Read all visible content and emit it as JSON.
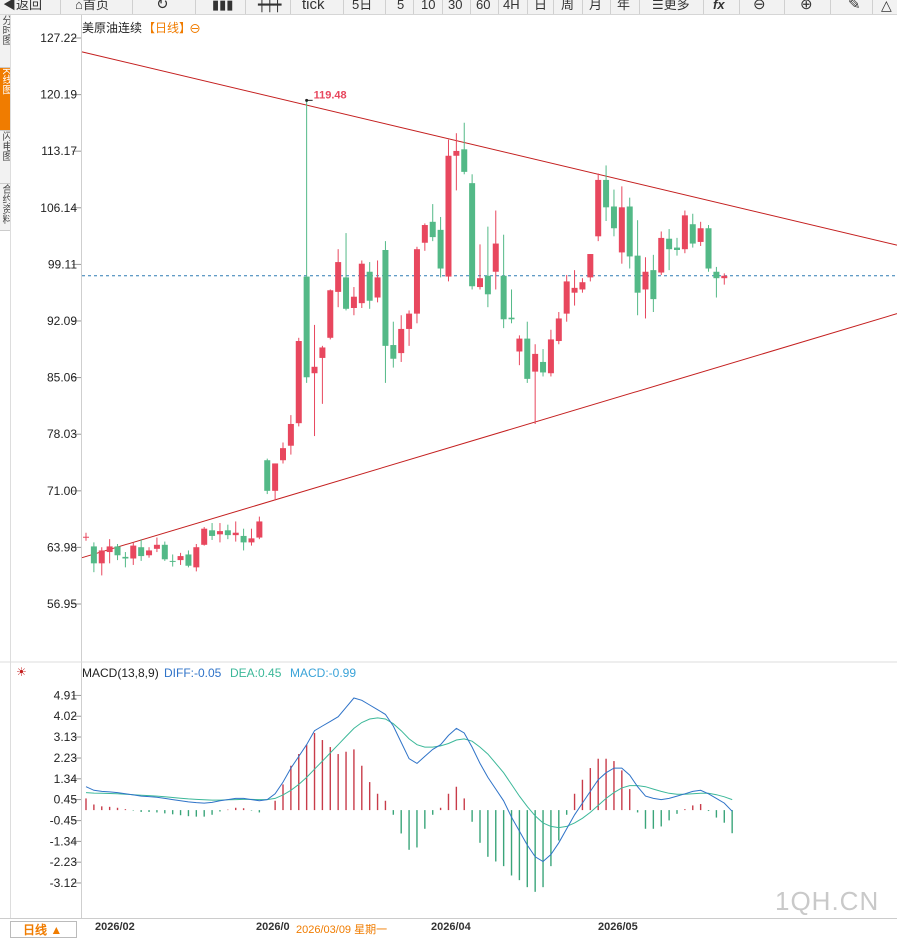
{
  "toolbar": {
    "back_label": "返回",
    "home_label": "首页",
    "tick_label": "tick",
    "five_day_label": "5日",
    "p5": "5",
    "p10": "10",
    "p30": "30",
    "p60": "60",
    "p4h": "4H",
    "day": "日",
    "week": "周",
    "month": "月",
    "year": "年",
    "more_label": "更多",
    "fx_label": "fx"
  },
  "side_tabs": [
    "分时图",
    "K线图",
    "闪电图",
    "合约资料"
  ],
  "chart_title": {
    "name": "美原油连续",
    "period": "【日线】"
  },
  "macd_header": {
    "name": "MACD(13,8,9)",
    "diff": "DIFF:-0.05",
    "dea": "DEA:0.45",
    "macd": "MACD:-0.99"
  },
  "colors": {
    "up": "#e8475e",
    "down": "#53b987",
    "trendline": "#c41f1f",
    "diff": "#2f73c8",
    "dea": "#3cb899",
    "dash": "#2e7bb4",
    "accent": "#f07c00"
  },
  "bottom": {
    "period_button": "日线 ▲",
    "cursor_date": "2026/03/09 星期一",
    "watermark": "1QH.CN"
  },
  "chart_data": [
    {
      "type": "candlestick",
      "title": "美原油连续【日线】",
      "y_ticks": [
        "127.22",
        "120.19",
        "113.17",
        "106.14",
        "99.11",
        "92.09",
        "85.06",
        "78.03",
        "71.00",
        "63.98",
        "56.95"
      ],
      "ylim": [
        56.95,
        127.22
      ],
      "x_tick_labels": [
        "2026/02",
        "2026/0",
        "2026/04",
        "2026/05"
      ],
      "max_annotation": {
        "label": "119.48",
        "value": 119.48
      },
      "last_price_line": 97.7,
      "trendlines": [
        {
          "name": "upper",
          "start": 125.5,
          "end": 101.5
        },
        {
          "name": "lower",
          "start": 62.7,
          "end": 93.0
        }
      ],
      "candles": [
        {
          "o": 65.2,
          "h": 65.8,
          "l": 64.8,
          "c": 65.3
        },
        {
          "o": 64.1,
          "h": 64.6,
          "l": 60.9,
          "c": 62.0
        },
        {
          "o": 62.0,
          "h": 64.0,
          "l": 60.5,
          "c": 63.6
        },
        {
          "o": 63.4,
          "h": 65.0,
          "l": 62.0,
          "c": 64.1
        },
        {
          "o": 64.1,
          "h": 64.4,
          "l": 62.4,
          "c": 63.0
        },
        {
          "o": 62.8,
          "h": 63.4,
          "l": 61.5,
          "c": 62.6
        },
        {
          "o": 62.6,
          "h": 64.6,
          "l": 61.8,
          "c": 64.2
        },
        {
          "o": 64.0,
          "h": 65.0,
          "l": 62.3,
          "c": 62.9
        },
        {
          "o": 63.0,
          "h": 64.0,
          "l": 62.7,
          "c": 63.6
        },
        {
          "o": 63.8,
          "h": 65.2,
          "l": 63.4,
          "c": 64.3
        },
        {
          "o": 64.3,
          "h": 64.7,
          "l": 62.3,
          "c": 62.5
        },
        {
          "o": 62.3,
          "h": 63.1,
          "l": 61.6,
          "c": 62.2
        },
        {
          "o": 62.4,
          "h": 63.3,
          "l": 61.8,
          "c": 62.9
        },
        {
          "o": 63.1,
          "h": 63.6,
          "l": 61.5,
          "c": 61.7
        },
        {
          "o": 61.5,
          "h": 64.4,
          "l": 61.0,
          "c": 64.0
        },
        {
          "o": 64.3,
          "h": 66.5,
          "l": 64.2,
          "c": 66.3
        },
        {
          "o": 66.1,
          "h": 67.0,
          "l": 64.9,
          "c": 65.4
        },
        {
          "o": 65.6,
          "h": 67.0,
          "l": 64.6,
          "c": 66.0
        },
        {
          "o": 66.1,
          "h": 66.8,
          "l": 65.0,
          "c": 65.5
        },
        {
          "o": 65.5,
          "h": 67.2,
          "l": 64.7,
          "c": 65.8
        },
        {
          "o": 65.4,
          "h": 66.3,
          "l": 63.6,
          "c": 64.6
        },
        {
          "o": 64.6,
          "h": 66.3,
          "l": 64.2,
          "c": 65.1
        },
        {
          "o": 65.2,
          "h": 67.8,
          "l": 65.0,
          "c": 67.2
        },
        {
          "o": 74.8,
          "h": 75.0,
          "l": 70.6,
          "c": 71.0
        },
        {
          "o": 71.0,
          "h": 74.4,
          "l": 69.8,
          "c": 74.4
        },
        {
          "o": 74.8,
          "h": 77.0,
          "l": 74.4,
          "c": 76.3
        },
        {
          "o": 76.6,
          "h": 80.4,
          "l": 75.5,
          "c": 79.3
        },
        {
          "o": 79.4,
          "h": 90.0,
          "l": 79.0,
          "c": 89.6
        },
        {
          "o": 97.6,
          "h": 119.48,
          "l": 84.4,
          "c": 85.1
        },
        {
          "o": 85.6,
          "h": 91.6,
          "l": 77.8,
          "c": 86.4
        },
        {
          "o": 87.5,
          "h": 89.0,
          "l": 81.8,
          "c": 88.8
        },
        {
          "o": 90.0,
          "h": 96.0,
          "l": 89.8,
          "c": 95.9
        },
        {
          "o": 95.7,
          "h": 101.0,
          "l": 93.8,
          "c": 99.4
        },
        {
          "o": 97.5,
          "h": 103.0,
          "l": 93.4,
          "c": 93.6
        },
        {
          "o": 93.7,
          "h": 96.3,
          "l": 92.8,
          "c": 95.1
        },
        {
          "o": 94.3,
          "h": 99.6,
          "l": 93.7,
          "c": 99.2
        },
        {
          "o": 98.2,
          "h": 99.4,
          "l": 93.6,
          "c": 94.6
        },
        {
          "o": 95.0,
          "h": 99.6,
          "l": 94.4,
          "c": 97.5
        },
        {
          "o": 100.9,
          "h": 102.0,
          "l": 84.4,
          "c": 89.0
        },
        {
          "o": 89.1,
          "h": 92.0,
          "l": 86.3,
          "c": 87.4
        },
        {
          "o": 88.1,
          "h": 92.8,
          "l": 87.0,
          "c": 91.1
        },
        {
          "o": 91.1,
          "h": 93.4,
          "l": 89.0,
          "c": 93.0
        },
        {
          "o": 93.0,
          "h": 101.3,
          "l": 91.8,
          "c": 101.0
        },
        {
          "o": 101.8,
          "h": 104.2,
          "l": 100.8,
          "c": 104.0
        },
        {
          "o": 104.4,
          "h": 106.6,
          "l": 102.0,
          "c": 102.5
        },
        {
          "o": 103.4,
          "h": 105.0,
          "l": 97.5,
          "c": 98.6
        },
        {
          "o": 97.6,
          "h": 114.6,
          "l": 97.0,
          "c": 112.6
        },
        {
          "o": 112.6,
          "h": 115.4,
          "l": 108.3,
          "c": 113.2
        },
        {
          "o": 113.4,
          "h": 116.7,
          "l": 110.3,
          "c": 110.6
        },
        {
          "o": 109.2,
          "h": 110.3,
          "l": 96.0,
          "c": 96.4
        },
        {
          "o": 96.3,
          "h": 101.6,
          "l": 96.0,
          "c": 97.4
        },
        {
          "o": 97.7,
          "h": 103.8,
          "l": 93.8,
          "c": 95.4
        },
        {
          "o": 98.2,
          "h": 105.8,
          "l": 96.0,
          "c": 101.7
        },
        {
          "o": 97.7,
          "h": 102.8,
          "l": 91.2,
          "c": 92.3
        },
        {
          "o": 92.5,
          "h": 96.0,
          "l": 91.8,
          "c": 92.3
        },
        {
          "o": 88.3,
          "h": 90.3,
          "l": 86.6,
          "c": 89.9
        },
        {
          "o": 89.9,
          "h": 92.0,
          "l": 84.4,
          "c": 84.9
        },
        {
          "o": 85.8,
          "h": 89.2,
          "l": 79.3,
          "c": 88.0
        },
        {
          "o": 87.0,
          "h": 88.6,
          "l": 85.2,
          "c": 85.7
        },
        {
          "o": 85.6,
          "h": 91.0,
          "l": 85.2,
          "c": 89.8
        },
        {
          "o": 89.6,
          "h": 93.2,
          "l": 89.2,
          "c": 92.4
        },
        {
          "o": 93.0,
          "h": 97.8,
          "l": 92.0,
          "c": 97.0
        },
        {
          "o": 95.6,
          "h": 98.4,
          "l": 94.0,
          "c": 96.2
        },
        {
          "o": 96.0,
          "h": 97.4,
          "l": 95.6,
          "c": 96.9
        },
        {
          "o": 97.5,
          "h": 100.4,
          "l": 97.0,
          "c": 100.4
        },
        {
          "o": 102.6,
          "h": 110.4,
          "l": 102.0,
          "c": 109.6
        },
        {
          "o": 109.6,
          "h": 111.4,
          "l": 104.5,
          "c": 106.2
        },
        {
          "o": 106.3,
          "h": 108.4,
          "l": 102.6,
          "c": 103.6
        },
        {
          "o": 100.6,
          "h": 108.8,
          "l": 99.2,
          "c": 106.2
        },
        {
          "o": 106.3,
          "h": 107.4,
          "l": 98.6,
          "c": 100.1
        },
        {
          "o": 100.2,
          "h": 104.6,
          "l": 92.8,
          "c": 95.6
        },
        {
          "o": 96.0,
          "h": 100.0,
          "l": 92.4,
          "c": 98.2
        },
        {
          "o": 98.4,
          "h": 100.3,
          "l": 93.2,
          "c": 94.8
        },
        {
          "o": 98.1,
          "h": 103.2,
          "l": 97.8,
          "c": 102.4
        },
        {
          "o": 102.3,
          "h": 103.5,
          "l": 98.4,
          "c": 101.0
        },
        {
          "o": 101.2,
          "h": 102.4,
          "l": 100.2,
          "c": 100.9
        },
        {
          "o": 101.0,
          "h": 105.8,
          "l": 100.5,
          "c": 105.2
        },
        {
          "o": 104.1,
          "h": 105.4,
          "l": 101.2,
          "c": 101.7
        },
        {
          "o": 101.9,
          "h": 104.4,
          "l": 101.4,
          "c": 103.6
        },
        {
          "o": 103.6,
          "h": 104.0,
          "l": 98.2,
          "c": 98.6
        },
        {
          "o": 98.2,
          "h": 98.8,
          "l": 95.0,
          "c": 97.4
        },
        {
          "o": 97.4,
          "h": 98.0,
          "l": 96.6,
          "c": 97.7
        }
      ]
    },
    {
      "type": "macd",
      "title": "MACD(13,8,9)",
      "y_ticks": [
        "4.91",
        "4.02",
        "3.13",
        "2.23",
        "1.34",
        "0.45",
        "-0.45",
        "-1.34",
        "-2.23",
        "-3.12"
      ],
      "ylim": [
        -3.55,
        5.4
      ],
      "series": [
        {
          "name": "DIFF",
          "values": [
            1.0,
            0.85,
            0.8,
            0.78,
            0.75,
            0.7,
            0.65,
            0.6,
            0.58,
            0.55,
            0.5,
            0.45,
            0.4,
            0.35,
            0.32,
            0.3,
            0.33,
            0.4,
            0.45,
            0.5,
            0.5,
            0.45,
            0.4,
            0.45,
            0.7,
            1.2,
            1.8,
            2.3,
            2.8,
            3.4,
            3.6,
            3.8,
            4.0,
            4.4,
            4.8,
            4.7,
            4.5,
            4.3,
            4.1,
            3.6,
            2.9,
            2.2,
            2.0,
            2.3,
            2.6,
            2.8,
            3.2,
            3.5,
            3.3,
            2.7,
            2.0,
            1.4,
            0.9,
            0.4,
            -0.3,
            -0.9,
            -1.5,
            -2.0,
            -2.2,
            -1.9,
            -1.4,
            -0.8,
            -0.2,
            0.3,
            0.8,
            1.3,
            1.6,
            1.8,
            1.8,
            1.5,
            1.0,
            0.6,
            0.5,
            0.45,
            0.5,
            0.6,
            0.7,
            0.8,
            0.85,
            0.7,
            0.5,
            0.3,
            -0.05
          ]
        },
        {
          "name": "DEA",
          "values": [
            0.75,
            0.73,
            0.72,
            0.71,
            0.7,
            0.68,
            0.66,
            0.64,
            0.62,
            0.6,
            0.57,
            0.54,
            0.51,
            0.48,
            0.46,
            0.44,
            0.43,
            0.43,
            0.44,
            0.45,
            0.46,
            0.46,
            0.45,
            0.45,
            0.5,
            0.65,
            0.85,
            1.1,
            1.4,
            1.75,
            2.1,
            2.45,
            2.8,
            3.15,
            3.5,
            3.75,
            3.9,
            3.95,
            3.9,
            3.7,
            3.4,
            3.05,
            2.8,
            2.7,
            2.7,
            2.75,
            2.85,
            3.0,
            3.05,
            2.95,
            2.7,
            2.4,
            2.0,
            1.6,
            1.1,
            0.6,
            0.15,
            -0.25,
            -0.55,
            -0.7,
            -0.75,
            -0.7,
            -0.55,
            -0.35,
            -0.1,
            0.2,
            0.5,
            0.75,
            0.95,
            1.05,
            1.05,
            1.0,
            0.9,
            0.8,
            0.72,
            0.68,
            0.68,
            0.7,
            0.72,
            0.72,
            0.66,
            0.57,
            0.45
          ]
        },
        {
          "name": "MACD",
          "values": [
            0.5,
            0.24,
            0.16,
            0.14,
            0.1,
            0.04,
            -0.02,
            -0.08,
            -0.08,
            -0.1,
            -0.14,
            -0.18,
            -0.22,
            -0.26,
            -0.28,
            -0.28,
            -0.2,
            -0.06,
            0.02,
            0.1,
            0.08,
            -0.02,
            -0.1,
            0.0,
            0.4,
            1.1,
            1.9,
            2.4,
            2.8,
            3.3,
            3.0,
            2.7,
            2.4,
            2.5,
            2.6,
            1.9,
            1.2,
            0.7,
            0.4,
            -0.2,
            -1.0,
            -1.7,
            -1.6,
            -0.8,
            -0.2,
            0.1,
            0.7,
            1.0,
            0.5,
            -0.5,
            -1.4,
            -2.0,
            -2.2,
            -2.4,
            -2.8,
            -3.0,
            -3.3,
            -3.5,
            -3.3,
            -2.4,
            -1.3,
            -0.2,
            0.7,
            1.3,
            1.8,
            2.2,
            2.2,
            2.1,
            1.7,
            0.9,
            -0.1,
            -0.8,
            -0.8,
            -0.7,
            -0.44,
            -0.16,
            0.04,
            0.2,
            0.26,
            -0.04,
            -0.32,
            -0.54,
            -0.99
          ]
        }
      ]
    }
  ]
}
